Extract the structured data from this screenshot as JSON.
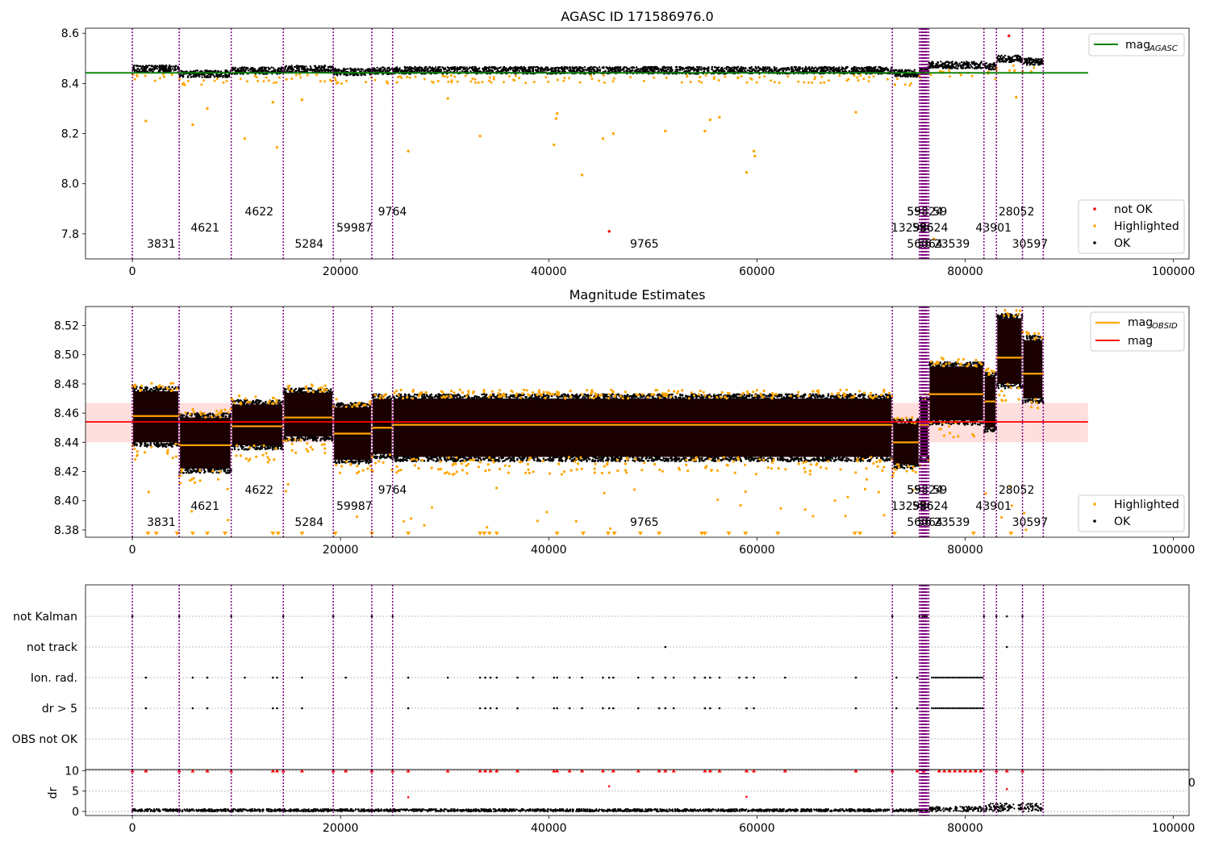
{
  "figure": {
    "panel1_title": "AGASC ID 171586976.0",
    "panel2_title": "Magnitude Estimates",
    "legend1": {
      "agasc": "mag",
      "agasc_sub": "AGASC",
      "not_ok": "not OK",
      "highlighted": "Highlighted",
      "ok": "OK"
    },
    "legend2": {
      "obsid": "mag",
      "obsid_sub": "OBSID",
      "mag": "mag",
      "highlighted": "Highlighted",
      "ok": "OK"
    },
    "dr_ylabel": "dr",
    "stray_tick": "0"
  },
  "chart_data": [
    {
      "type": "scatter",
      "title": "AGASC ID 171586976.0",
      "xlim": [
        -4500,
        101500
      ],
      "ylim": [
        7.7,
        8.62
      ],
      "xticks": [
        0,
        20000,
        40000,
        60000,
        80000,
        100000
      ],
      "yticks": [
        7.8,
        8.0,
        8.2,
        8.4,
        8.6
      ],
      "legend_position": "top-right + bottom-right",
      "mag_agasc": 8.442,
      "mag_agasc_x_range": [
        -4500,
        91800
      ],
      "colors": {
        "agasc_line": "#008000",
        "not_ok": "#ff0000",
        "highlighted": "#ffa500",
        "ok": "#000000",
        "obs_lines": "#800080"
      },
      "observations": [
        {
          "start": 0,
          "end": 4500,
          "mag": 8.458,
          "label": "3831",
          "label_x": 1400,
          "row": 0
        },
        {
          "start": 4500,
          "end": 9500,
          "mag": 8.438,
          "label": "4621",
          "label_x": 5600,
          "row": 1
        },
        {
          "start": 9500,
          "end": 14500,
          "mag": 8.451,
          "label": "4622",
          "label_x": 10800,
          "row": 2
        },
        {
          "start": 14500,
          "end": 19300,
          "mag": 8.457,
          "label": "5284",
          "label_x": 15600,
          "row": 0
        },
        {
          "start": 19300,
          "end": 23000,
          "mag": 8.446,
          "label": "59987",
          "label_x": 19600,
          "row": 1
        },
        {
          "start": 23000,
          "end": 25000,
          "mag": 8.45,
          "label": "9764",
          "label_x": 23600,
          "row": 2
        },
        {
          "start": 25000,
          "end": 73000,
          "mag": 8.452,
          "label": "9765",
          "label_x": 47800,
          "row": 0
        },
        {
          "start": 73000,
          "end": 75600,
          "mag": 8.44,
          "label": "13298",
          "label_x": 72900,
          "row": 1
        },
        {
          "start": 75600,
          "end": 76500,
          "mag": 8.452,
          "label": "59",
          "label_x": 74400,
          "row": 2
        },
        {
          "start": 76500,
          "end": 81800,
          "mag": 8.473,
          "label": "23539",
          "label_x": 77000,
          "row": 0
        },
        {
          "start": 81800,
          "end": 83000,
          "mag": 8.468,
          "label": "43901",
          "label_x": 81000,
          "row": 1
        },
        {
          "start": 83000,
          "end": 85500,
          "mag": 8.498,
          "label": "28052",
          "label_x": 83200,
          "row": 2
        },
        {
          "start": 85500,
          "end": 87500,
          "mag": 8.487,
          "label": "30597",
          "label_x": 84500,
          "row": 0
        }
      ],
      "cluster_labels": [
        {
          "label": "55824",
          "x": 74400,
          "row": 2
        },
        {
          "label": "59",
          "x": 76900,
          "row": 2
        },
        {
          "label": "56064",
          "x": 74400,
          "row": 0
        },
        {
          "label": "56",
          "x": 75400,
          "row": 0
        },
        {
          "label": "596",
          "x": 74900,
          "row": 1
        },
        {
          "label": "5624",
          "x": 75600,
          "row": 1
        }
      ],
      "outliers": [
        {
          "x": 45800,
          "y": 7.81,
          "cls": "not_ok"
        },
        {
          "x": 84200,
          "y": 8.59,
          "cls": "not_ok"
        },
        {
          "x": 1300,
          "y": 8.25,
          "cls": "highlighted"
        },
        {
          "x": 5800,
          "y": 8.235,
          "cls": "highlighted"
        },
        {
          "x": 7200,
          "y": 8.3,
          "cls": "highlighted"
        },
        {
          "x": 10800,
          "y": 8.18,
          "cls": "highlighted"
        },
        {
          "x": 13500,
          "y": 8.325,
          "cls": "highlighted"
        },
        {
          "x": 13900,
          "y": 8.145,
          "cls": "highlighted"
        },
        {
          "x": 16300,
          "y": 8.335,
          "cls": "highlighted"
        },
        {
          "x": 26500,
          "y": 8.13,
          "cls": "highlighted"
        },
        {
          "x": 30300,
          "y": 8.34,
          "cls": "highlighted"
        },
        {
          "x": 33400,
          "y": 8.19,
          "cls": "highlighted"
        },
        {
          "x": 40500,
          "y": 8.155,
          "cls": "highlighted"
        },
        {
          "x": 40700,
          "y": 8.26,
          "cls": "highlighted"
        },
        {
          "x": 40800,
          "y": 8.28,
          "cls": "highlighted"
        },
        {
          "x": 43200,
          "y": 8.035,
          "cls": "highlighted"
        },
        {
          "x": 45200,
          "y": 8.18,
          "cls": "highlighted"
        },
        {
          "x": 46200,
          "y": 8.2,
          "cls": "highlighted"
        },
        {
          "x": 51200,
          "y": 8.21,
          "cls": "highlighted"
        },
        {
          "x": 55000,
          "y": 8.21,
          "cls": "highlighted"
        },
        {
          "x": 55500,
          "y": 8.255,
          "cls": "highlighted"
        },
        {
          "x": 56400,
          "y": 8.265,
          "cls": "highlighted"
        },
        {
          "x": 59000,
          "y": 8.045,
          "cls": "highlighted"
        },
        {
          "x": 59700,
          "y": 8.13,
          "cls": "highlighted"
        },
        {
          "x": 59800,
          "y": 8.11,
          "cls": "highlighted"
        },
        {
          "x": 69500,
          "y": 8.285,
          "cls": "highlighted"
        },
        {
          "x": 84900,
          "y": 8.345,
          "cls": "highlighted"
        },
        {
          "x": 77000,
          "y": 7.78,
          "cls": "highlighted"
        }
      ]
    },
    {
      "type": "scatter",
      "title": "Magnitude Estimates",
      "xlim": [
        -4500,
        101500
      ],
      "ylim": [
        8.375,
        8.533
      ],
      "xticks": [
        0,
        20000,
        40000,
        60000,
        80000,
        100000
      ],
      "yticks": [
        8.38,
        8.4,
        8.42,
        8.44,
        8.46,
        8.48,
        8.5,
        8.52
      ],
      "legend_position": "top-right + bottom-right",
      "mag": 8.454,
      "mag_band": [
        8.44,
        8.467
      ],
      "mag_x_range": [
        -4500,
        91800
      ],
      "colors": {
        "mag_line": "#ff0000",
        "mag_band": "#ffd6d6",
        "obsid_line": "#ffa500",
        "highlighted": "#ffa500",
        "ok": "#000000"
      },
      "observation_spreads": [
        {
          "start": 0,
          "end": 4500,
          "low": 8.44,
          "high": 8.475
        },
        {
          "start": 4500,
          "end": 9500,
          "low": 8.422,
          "high": 8.457
        },
        {
          "start": 9500,
          "end": 14500,
          "low": 8.438,
          "high": 8.466
        },
        {
          "start": 14500,
          "end": 19300,
          "low": 8.444,
          "high": 8.474
        },
        {
          "start": 19300,
          "end": 23000,
          "low": 8.428,
          "high": 8.464
        },
        {
          "start": 23000,
          "end": 25000,
          "low": 8.432,
          "high": 8.47
        },
        {
          "start": 25000,
          "end": 73000,
          "low": 8.43,
          "high": 8.47
        },
        {
          "start": 73000,
          "end": 75600,
          "low": 8.425,
          "high": 8.453
        },
        {
          "start": 75600,
          "end": 76500,
          "low": 8.43,
          "high": 8.468
        },
        {
          "start": 76500,
          "end": 81800,
          "low": 8.455,
          "high": 8.492
        },
        {
          "start": 81800,
          "end": 83000,
          "low": 8.45,
          "high": 8.485
        },
        {
          "start": 83000,
          "end": 85500,
          "low": 8.48,
          "high": 8.525
        },
        {
          "start": 85500,
          "end": 87500,
          "low": 8.47,
          "high": 8.51
        }
      ],
      "lower_markers_x": [
        1500,
        2300,
        4300,
        5800,
        7200,
        8900,
        13500,
        14000,
        16300,
        19500,
        23000,
        26500,
        33400,
        33800,
        34300,
        35000,
        40800,
        43300,
        45700,
        46300,
        48800,
        50600,
        54700,
        55000,
        57300,
        58900,
        62000,
        69400,
        69900,
        73200,
        80800,
        84400
      ]
    },
    {
      "type": "scatter",
      "title": "",
      "xlim": [
        -4500,
        101500
      ],
      "xticks": [
        0,
        20000,
        40000,
        60000,
        80000,
        100000
      ],
      "flag_rows": [
        "not Kalman",
        "not track",
        "Ion. rad.",
        "dr > 5",
        "OBS not OK"
      ],
      "flag_events": {
        "not Kalman": [
          0,
          4500,
          9500,
          14500,
          19300,
          23000,
          25000,
          73000,
          75600,
          75900,
          76100,
          76300,
          81800,
          83000,
          84000,
          85500
        ],
        "not track": [
          51200,
          84000
        ],
        "Ion. rad.": [
          1300,
          5800,
          7200,
          10800,
          13500,
          13900,
          16300,
          20500,
          26500,
          30300,
          33400,
          33900,
          34400,
          35000,
          37000,
          38500,
          40500,
          40800,
          42000,
          43200,
          45200,
          45800,
          46200,
          48600,
          50000,
          51200,
          52000,
          54000,
          55000,
          55500,
          56400,
          58300,
          59000,
          59700,
          62700,
          69500,
          73400,
          75400
        ],
        "dr > 5": [
          1300,
          5800,
          7200,
          13500,
          13900,
          16300,
          26500,
          33400,
          33900,
          34400,
          35000,
          37000,
          40500,
          40800,
          42000,
          43200,
          45200,
          45800,
          46200,
          48600,
          50600,
          51200,
          52000,
          55000,
          55500,
          56400,
          59000,
          59700,
          69500,
          73400,
          75400
        ],
        "OBS not OK": []
      },
      "dense_flag_ranges": [
        {
          "row": "Ion. rad.",
          "from": 76800,
          "to": 81700
        },
        {
          "row": "dr > 5",
          "from": 76800,
          "to": 81700
        }
      ],
      "colors": {
        "markers": "#000000",
        "grid": "#aaaaaa"
      }
    },
    {
      "type": "scatter",
      "title": "",
      "ylabel": "dr",
      "xlim": [
        -4500,
        101500
      ],
      "ylim": [
        -1,
        10.3
      ],
      "xticks": [
        0,
        20000,
        40000,
        60000,
        80000,
        100000
      ],
      "yticks": [
        0,
        5,
        10
      ],
      "clipped_at_10_x": [
        0,
        1300,
        4500,
        5800,
        7200,
        9500,
        13500,
        13900,
        14500,
        16300,
        19300,
        20500,
        23000,
        25000,
        26500,
        30300,
        33400,
        33900,
        34400,
        35000,
        37000,
        40500,
        40800,
        42000,
        43200,
        45200,
        46200,
        48600,
        50600,
        51200,
        52000,
        55000,
        55500,
        56400,
        59000,
        59700,
        62700,
        69500,
        73000,
        75400,
        76000,
        77500,
        78000,
        78500,
        79000,
        79500,
        80000,
        80500,
        81000,
        81500,
        83000,
        84000,
        85500
      ],
      "outliers": [
        {
          "x": 45800,
          "y": 6.2
        },
        {
          "x": 26500,
          "y": 3.5
        },
        {
          "x": 59000,
          "y": 3.6
        },
        {
          "x": 84000,
          "y": 5.5
        }
      ],
      "colors": {
        "clipped": "#ff0000",
        "ok": "#000000"
      }
    }
  ]
}
